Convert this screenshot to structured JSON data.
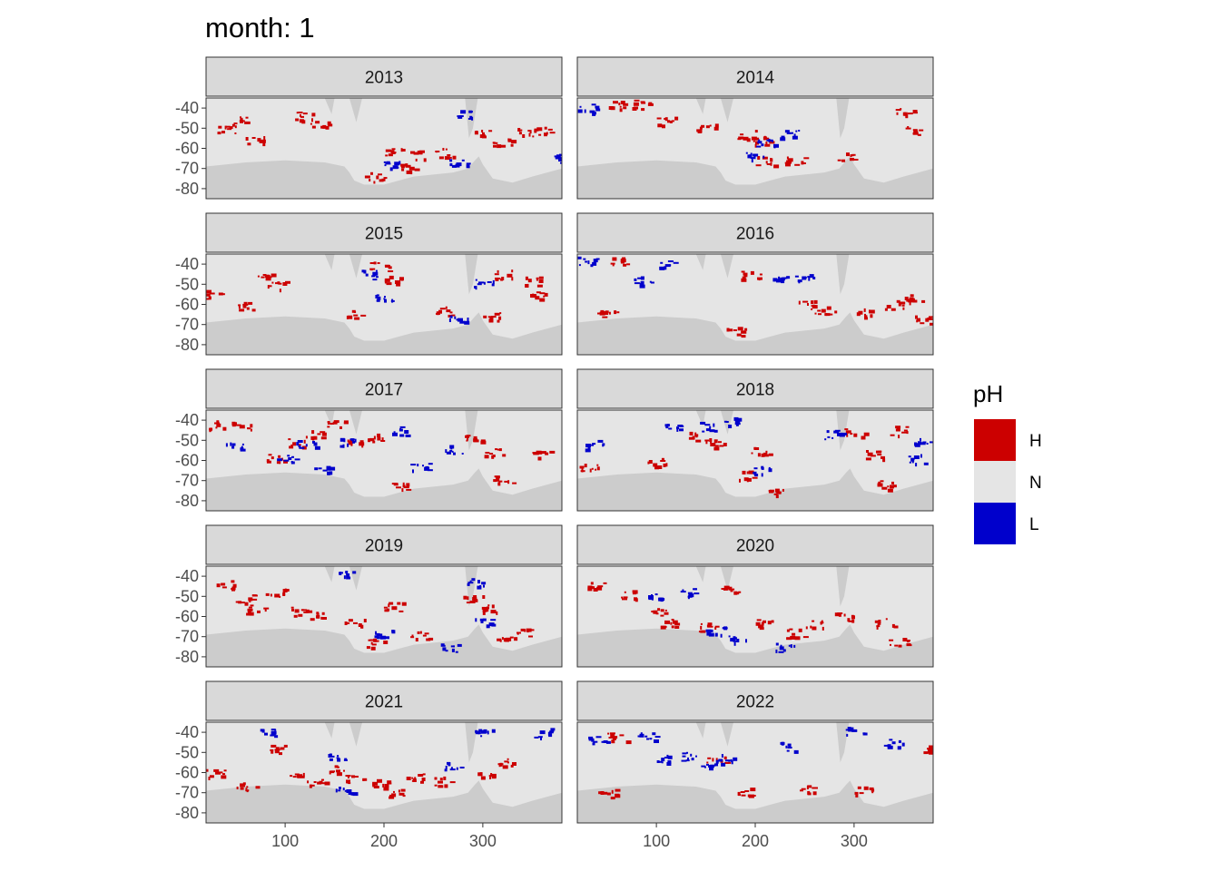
{
  "chart_data": {
    "type": "heatmap",
    "title": "month: 1",
    "xlabel": "",
    "ylabel": "",
    "x_ticks": [
      100,
      200,
      300
    ],
    "y_ticks": [
      -40,
      -50,
      -60,
      -70,
      -80
    ],
    "xlim": [
      20,
      380
    ],
    "ylim": [
      -85,
      -35
    ],
    "legend": {
      "title": "pH",
      "position": "right",
      "items": [
        {
          "label": "H",
          "color": "#cc0000"
        },
        {
          "label": "N",
          "color": "#e5e5e5"
        },
        {
          "label": "L",
          "color": "#0000cc"
        }
      ]
    },
    "colors": {
      "H": "#cc0000",
      "N": "#e5e5e5",
      "L": "#0000cc",
      "land": "#cccccc",
      "strip": "#d9d9d9"
    },
    "panels": [
      {
        "year": "2013",
        "H": [
          [
            40,
            -50
          ],
          [
            55,
            -46
          ],
          [
            70,
            -55
          ],
          [
            120,
            -44
          ],
          [
            135,
            -47
          ],
          [
            190,
            -74
          ],
          [
            210,
            -62
          ],
          [
            225,
            -69
          ],
          [
            235,
            -63
          ],
          [
            260,
            -62
          ],
          [
            300,
            -52
          ],
          [
            320,
            -57
          ],
          [
            345,
            -52
          ],
          [
            360,
            -51
          ]
        ],
        "L": [
          [
            205,
            -68
          ],
          [
            275,
            -67
          ],
          [
            282,
            -43
          ],
          [
            380,
            -65
          ]
        ]
      },
      {
        "year": "2014",
        "H": [
          [
            60,
            -38
          ],
          [
            85,
            -38
          ],
          [
            110,
            -46
          ],
          [
            150,
            -50
          ],
          [
            190,
            -53
          ],
          [
            205,
            -56
          ],
          [
            210,
            -66
          ],
          [
            240,
            -66
          ],
          [
            290,
            -64
          ],
          [
            350,
            -42
          ],
          [
            360,
            -51
          ]
        ],
        "L": [
          [
            30,
            -40
          ],
          [
            200,
            -64
          ],
          [
            210,
            -57
          ],
          [
            235,
            -53
          ]
        ]
      },
      {
        "year": "2015",
        "H": [
          [
            25,
            -55
          ],
          [
            60,
            -60
          ],
          [
            80,
            -46
          ],
          [
            90,
            -50
          ],
          [
            170,
            -65
          ],
          [
            195,
            -41
          ],
          [
            210,
            -48
          ],
          [
            260,
            -63
          ],
          [
            310,
            -66
          ],
          [
            320,
            -45
          ],
          [
            350,
            -48
          ],
          [
            355,
            -55
          ]
        ],
        "L": [
          [
            185,
            -45
          ],
          [
            200,
            -57
          ],
          [
            275,
            -67
          ],
          [
            300,
            -49
          ]
        ]
      },
      {
        "year": "2016",
        "H": [
          [
            50,
            -65
          ],
          [
            60,
            -38
          ],
          [
            180,
            -73
          ],
          [
            195,
            -45
          ],
          [
            250,
            -60
          ],
          [
            270,
            -63
          ],
          [
            310,
            -64
          ],
          [
            340,
            -60
          ],
          [
            360,
            -57
          ],
          [
            370,
            -67
          ]
        ],
        "L": [
          [
            30,
            -38
          ],
          [
            85,
            -48
          ],
          [
            110,
            -40
          ],
          [
            225,
            -46
          ],
          [
            250,
            -46
          ]
        ]
      },
      {
        "year": "2017",
        "H": [
          [
            30,
            -42
          ],
          [
            55,
            -43
          ],
          [
            90,
            -59
          ],
          [
            110,
            -51
          ],
          [
            130,
            -47
          ],
          [
            150,
            -42
          ],
          [
            170,
            -51
          ],
          [
            190,
            -48
          ],
          [
            215,
            -72
          ],
          [
            290,
            -48
          ],
          [
            310,
            -56
          ],
          [
            320,
            -69
          ],
          [
            360,
            -56
          ]
        ],
        "L": [
          [
            50,
            -53
          ],
          [
            100,
            -59
          ],
          [
            120,
            -52
          ],
          [
            135,
            -64
          ],
          [
            165,
            -51
          ],
          [
            215,
            -45
          ],
          [
            235,
            -63
          ],
          [
            270,
            -54
          ]
        ]
      },
      {
        "year": "2018",
        "H": [
          [
            30,
            -63
          ],
          [
            100,
            -61
          ],
          [
            140,
            -48
          ],
          [
            160,
            -51
          ],
          [
            190,
            -67
          ],
          [
            205,
            -55
          ],
          [
            220,
            -76
          ],
          [
            300,
            -46
          ],
          [
            320,
            -57
          ],
          [
            330,
            -72
          ],
          [
            345,
            -45
          ]
        ],
        "L": [
          [
            35,
            -52
          ],
          [
            115,
            -42
          ],
          [
            150,
            -43
          ],
          [
            175,
            -40
          ],
          [
            205,
            -65
          ],
          [
            280,
            -47
          ],
          [
            365,
            -59
          ],
          [
            370,
            -50
          ]
        ]
      },
      {
        "year": "2019",
        "H": [
          [
            40,
            -44
          ],
          [
            60,
            -51
          ],
          [
            70,
            -56
          ],
          [
            90,
            -48
          ],
          [
            115,
            -57
          ],
          [
            130,
            -59
          ],
          [
            170,
            -63
          ],
          [
            190,
            -73
          ],
          [
            210,
            -55
          ],
          [
            235,
            -69
          ],
          [
            290,
            -51
          ],
          [
            305,
            -56
          ],
          [
            320,
            -72
          ],
          [
            340,
            -68
          ]
        ],
        "L": [
          [
            160,
            -38
          ],
          [
            200,
            -68
          ],
          [
            265,
            -75
          ],
          [
            290,
            -43
          ],
          [
            300,
            -62
          ]
        ]
      },
      {
        "year": "2020",
        "H": [
          [
            40,
            -44
          ],
          [
            70,
            -49
          ],
          [
            100,
            -58
          ],
          [
            110,
            -63
          ],
          [
            150,
            -65
          ],
          [
            175,
            -47
          ],
          [
            210,
            -63
          ],
          [
            240,
            -68
          ],
          [
            260,
            -64
          ],
          [
            290,
            -60
          ],
          [
            330,
            -63
          ],
          [
            345,
            -72
          ]
        ],
        "L": [
          [
            100,
            -50
          ],
          [
            130,
            -48
          ],
          [
            160,
            -67
          ],
          [
            180,
            -71
          ],
          [
            230,
            -75
          ]
        ]
      },
      {
        "year": "2021",
        "H": [
          [
            30,
            -60
          ],
          [
            60,
            -67
          ],
          [
            90,
            -48
          ],
          [
            110,
            -61
          ],
          [
            130,
            -65
          ],
          [
            150,
            -58
          ],
          [
            170,
            -63
          ],
          [
            195,
            -65
          ],
          [
            210,
            -70
          ],
          [
            230,
            -62
          ],
          [
            260,
            -64
          ],
          [
            300,
            -62
          ],
          [
            320,
            -55
          ]
        ],
        "L": [
          [
            80,
            -40
          ],
          [
            150,
            -52
          ],
          [
            160,
            -68
          ],
          [
            270,
            -57
          ],
          [
            300,
            -40
          ],
          [
            360,
            -40
          ]
        ]
      },
      {
        "year": "2022",
        "H": [
          [
            50,
            -70
          ],
          [
            60,
            -42
          ],
          [
            160,
            -54
          ],
          [
            190,
            -69
          ],
          [
            250,
            -68
          ],
          [
            310,
            -69
          ],
          [
            380,
            -48
          ]
        ],
        "L": [
          [
            40,
            -44
          ],
          [
            90,
            -42
          ],
          [
            110,
            -53
          ],
          [
            130,
            -52
          ],
          [
            150,
            -55
          ],
          [
            170,
            -53
          ],
          [
            230,
            -47
          ],
          [
            300,
            -39
          ],
          [
            340,
            -45
          ]
        ]
      }
    ]
  }
}
